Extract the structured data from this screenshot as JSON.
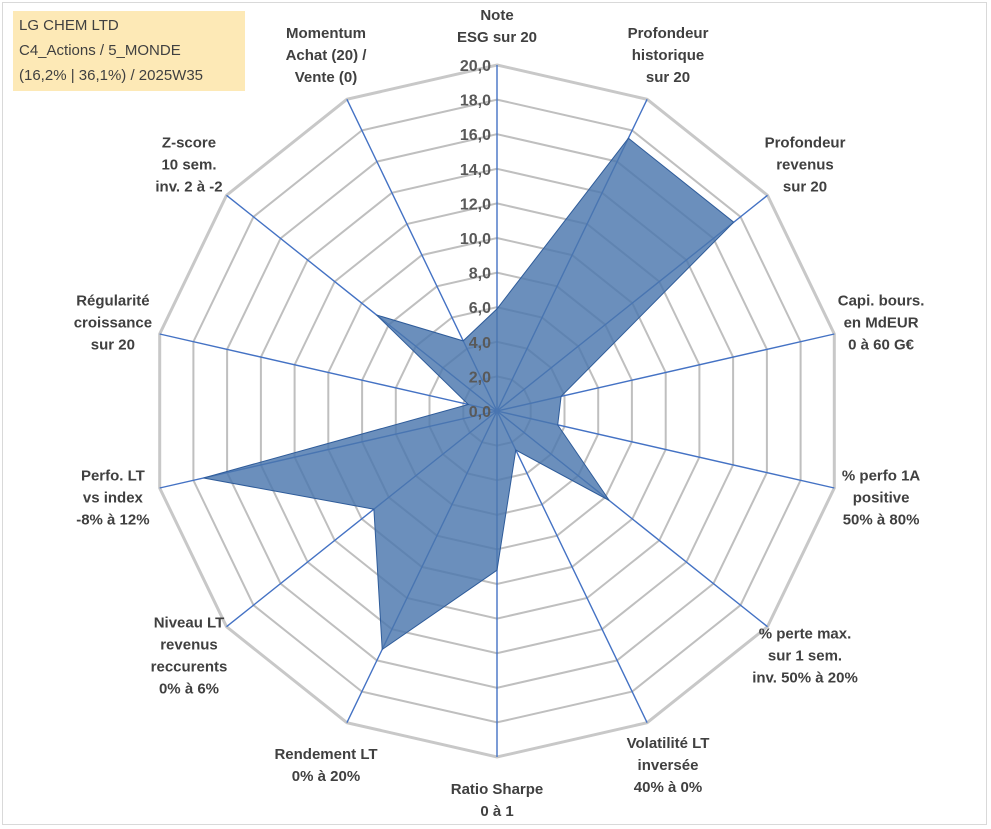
{
  "header": {
    "line1": "LG CHEM LTD",
    "line2": "C4_Actions / 5_MONDE",
    "line3": "(16,2% | 36,1%) / 2025W35"
  },
  "colors": {
    "fill": "#4a76ad",
    "fill_stroke": "#2f5c9a",
    "spoke": "#4472c4",
    "grid": "#bfbfbf",
    "outer_ring": "#c8c8c8"
  },
  "chart_data": {
    "type": "radar",
    "rmin": 0,
    "rmax": 20,
    "tick_step": 2,
    "tick_labels": [
      "0,0",
      "2,0",
      "4,0",
      "6,0",
      "8,0",
      "10,0",
      "12,0",
      "14,0",
      "16,0",
      "18,0",
      "20,0"
    ],
    "grid": true,
    "axes": [
      {
        "label": [
          "Note",
          "ESG sur 20"
        ],
        "value": 5.9
      },
      {
        "label": [
          "Profondeur",
          "historique",
          "sur 20"
        ],
        "value": 17.5
      },
      {
        "label": [
          "Profondeur",
          "revenus",
          "sur 20"
        ],
        "value": 17.5
      },
      {
        "label": [
          "Capi. bours.",
          "en MdEUR",
          "0 à 60 G€"
        ],
        "value": 3.8
      },
      {
        "label": [
          "% perfo 1A",
          "positive",
          "50% à 80%"
        ],
        "value": 3.6
      },
      {
        "label": [
          "% perte max.",
          "sur 1 sem.",
          "inv. 50% à 20%"
        ],
        "value": 8.3
      },
      {
        "label": [
          "Volatilité LT",
          "inversée",
          "40% à 0%"
        ],
        "value": 2.5
      },
      {
        "label": [
          "Ratio Sharpe",
          "0 à 1"
        ],
        "value": 9.2
      },
      {
        "label": [
          "Rendement LT",
          "0% à 20%"
        ],
        "value": 15.3
      },
      {
        "label": [
          "Niveau LT",
          "revenus",
          "reccurents",
          "0% à 6%"
        ],
        "value": 9.1
      },
      {
        "label": [
          "Perfo. LT",
          "vs index",
          "-8% à 12%"
        ],
        "value": 17.4
      },
      {
        "label": [
          "Régularité",
          "croissance",
          "sur 20"
        ],
        "value": 1.7
      },
      {
        "label": [
          "Z-score",
          "10 sem.",
          "inv. 2 à -2"
        ],
        "value": 8.9
      },
      {
        "label": [
          "Momentum",
          "Achat (20) /",
          "Vente (0)"
        ],
        "value": 4.5
      }
    ]
  }
}
